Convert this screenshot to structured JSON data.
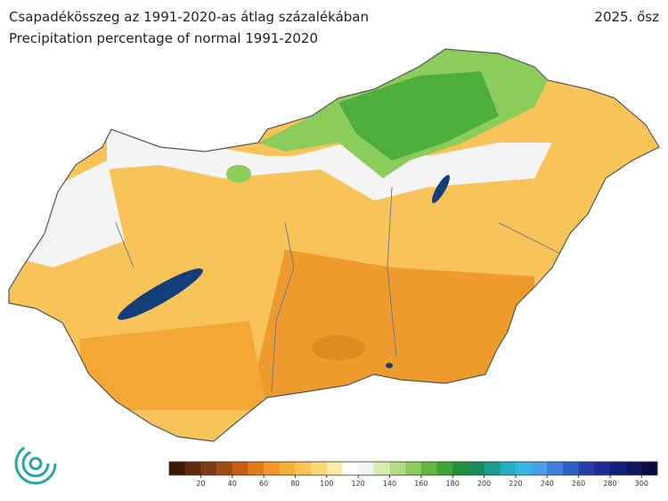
{
  "header": {
    "title_hu": "Csapadékösszeg az 1991-2020-as átlag százalékában",
    "title_en": "Precipitation percentage of normal 1991-2020",
    "season": "2025. ősz"
  },
  "legend": {
    "range": [
      0,
      310
    ],
    "colors": [
      "#3d1a08",
      "#5e2a0c",
      "#7e3a10",
      "#a04c12",
      "#c45e14",
      "#e07a1a",
      "#f0962a",
      "#f6ae3c",
      "#f9c356",
      "#fbd878",
      "#fdeaa8",
      "#ffffff",
      "#f4f4f4",
      "#d8ecae",
      "#b4dc84",
      "#8ccc5a",
      "#62b83c",
      "#3ea434",
      "#22903a",
      "#1a8a5a",
      "#1a9a8c",
      "#22b0c0",
      "#38b4e0",
      "#4aa0e8",
      "#3c80d8",
      "#2c60c4",
      "#2440a8",
      "#1c2c90",
      "#142078",
      "#0e1660",
      "#080c40"
    ],
    "ticks": [
      20,
      40,
      60,
      80,
      100,
      120,
      140,
      160,
      180,
      200,
      220,
      240,
      260,
      280,
      300
    ]
  }
}
